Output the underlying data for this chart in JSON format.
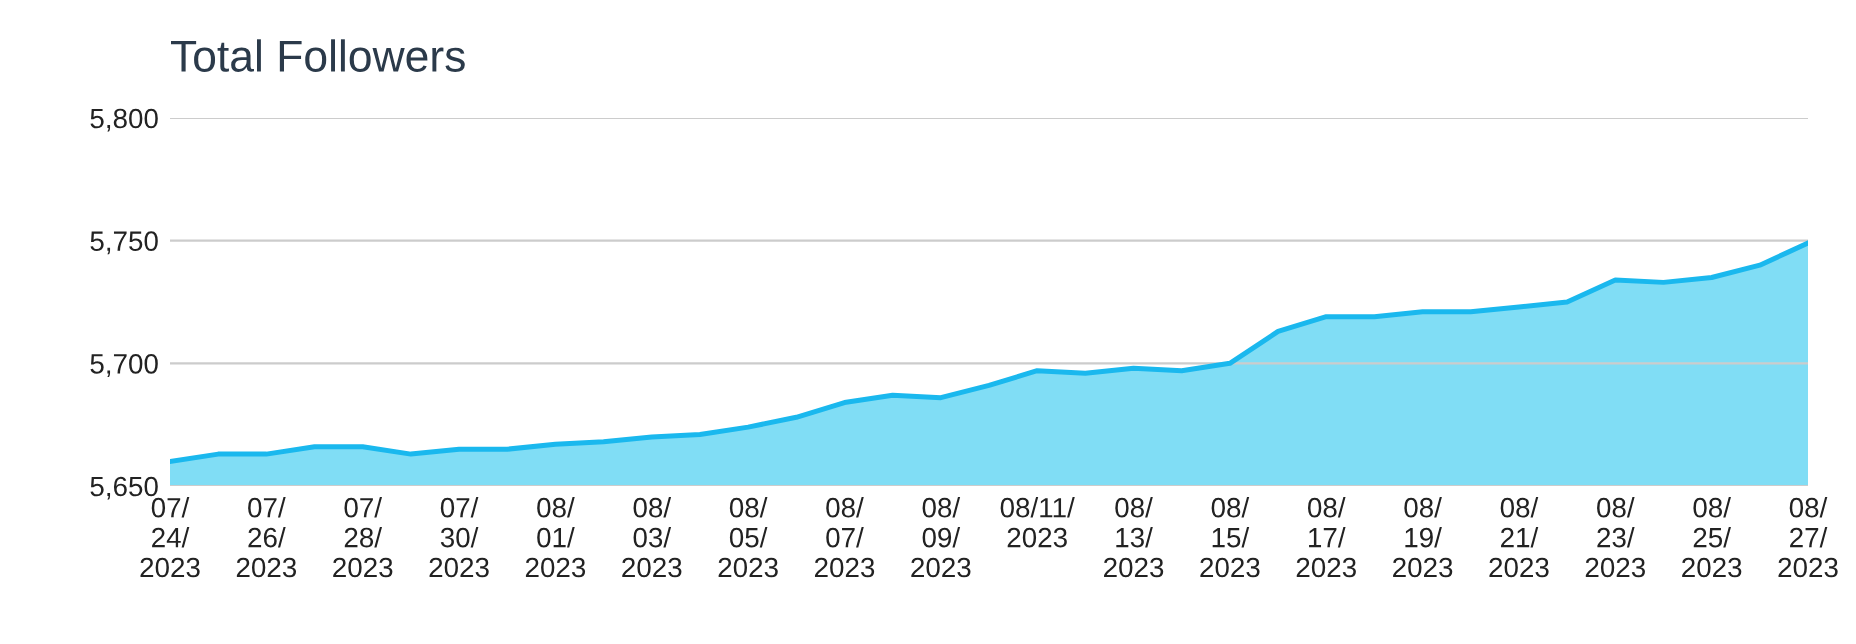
{
  "chart_data": {
    "type": "area",
    "title": "Total Followers",
    "categories": [
      "07/\n24/\n2023",
      null,
      "07/\n26/\n2023",
      null,
      "07/\n28/\n2023",
      null,
      "07/\n30/\n2023",
      null,
      "08/\n01/\n2023",
      null,
      "08/\n03/\n2023",
      null,
      "08/\n05/\n2023",
      null,
      "08/\n07/\n2023",
      null,
      "08/\n09/\n2023",
      null,
      "08/11/\n2023",
      null,
      "08/\n13/\n2023",
      null,
      "08/\n15/\n2023",
      null,
      "08/\n17/\n2023",
      null,
      "08/\n19/\n2023",
      null,
      "08/\n21/\n2023",
      null,
      "08/\n23/\n2023",
      null,
      "08/\n25/\n2023",
      null,
      "08/\n27/\n2023"
    ],
    "series": [
      {
        "color": "#1ab8ee",
        "values": [
          5660,
          5663,
          5663,
          5666,
          5666,
          5663,
          5665,
          5665,
          5667,
          5668,
          5670,
          5671,
          5674,
          5678,
          5684,
          5687,
          5686,
          5691,
          5697,
          5696,
          5698,
          5697,
          5700,
          5713,
          5719,
          5719,
          5721,
          5721,
          5723,
          5725,
          5734,
          5733,
          5735,
          5740,
          5749
        ]
      }
    ],
    "ylim": [
      5650,
      5800
    ],
    "yticks": [
      {
        "value": 5650,
        "label": "5,650"
      },
      {
        "value": 5700,
        "label": "5,700"
      },
      {
        "value": 5750,
        "label": "5,750"
      },
      {
        "value": 5800,
        "label": "5,800"
      }
    ],
    "grid": "y",
    "legend": false,
    "marker": "none",
    "line_style": "solid"
  }
}
